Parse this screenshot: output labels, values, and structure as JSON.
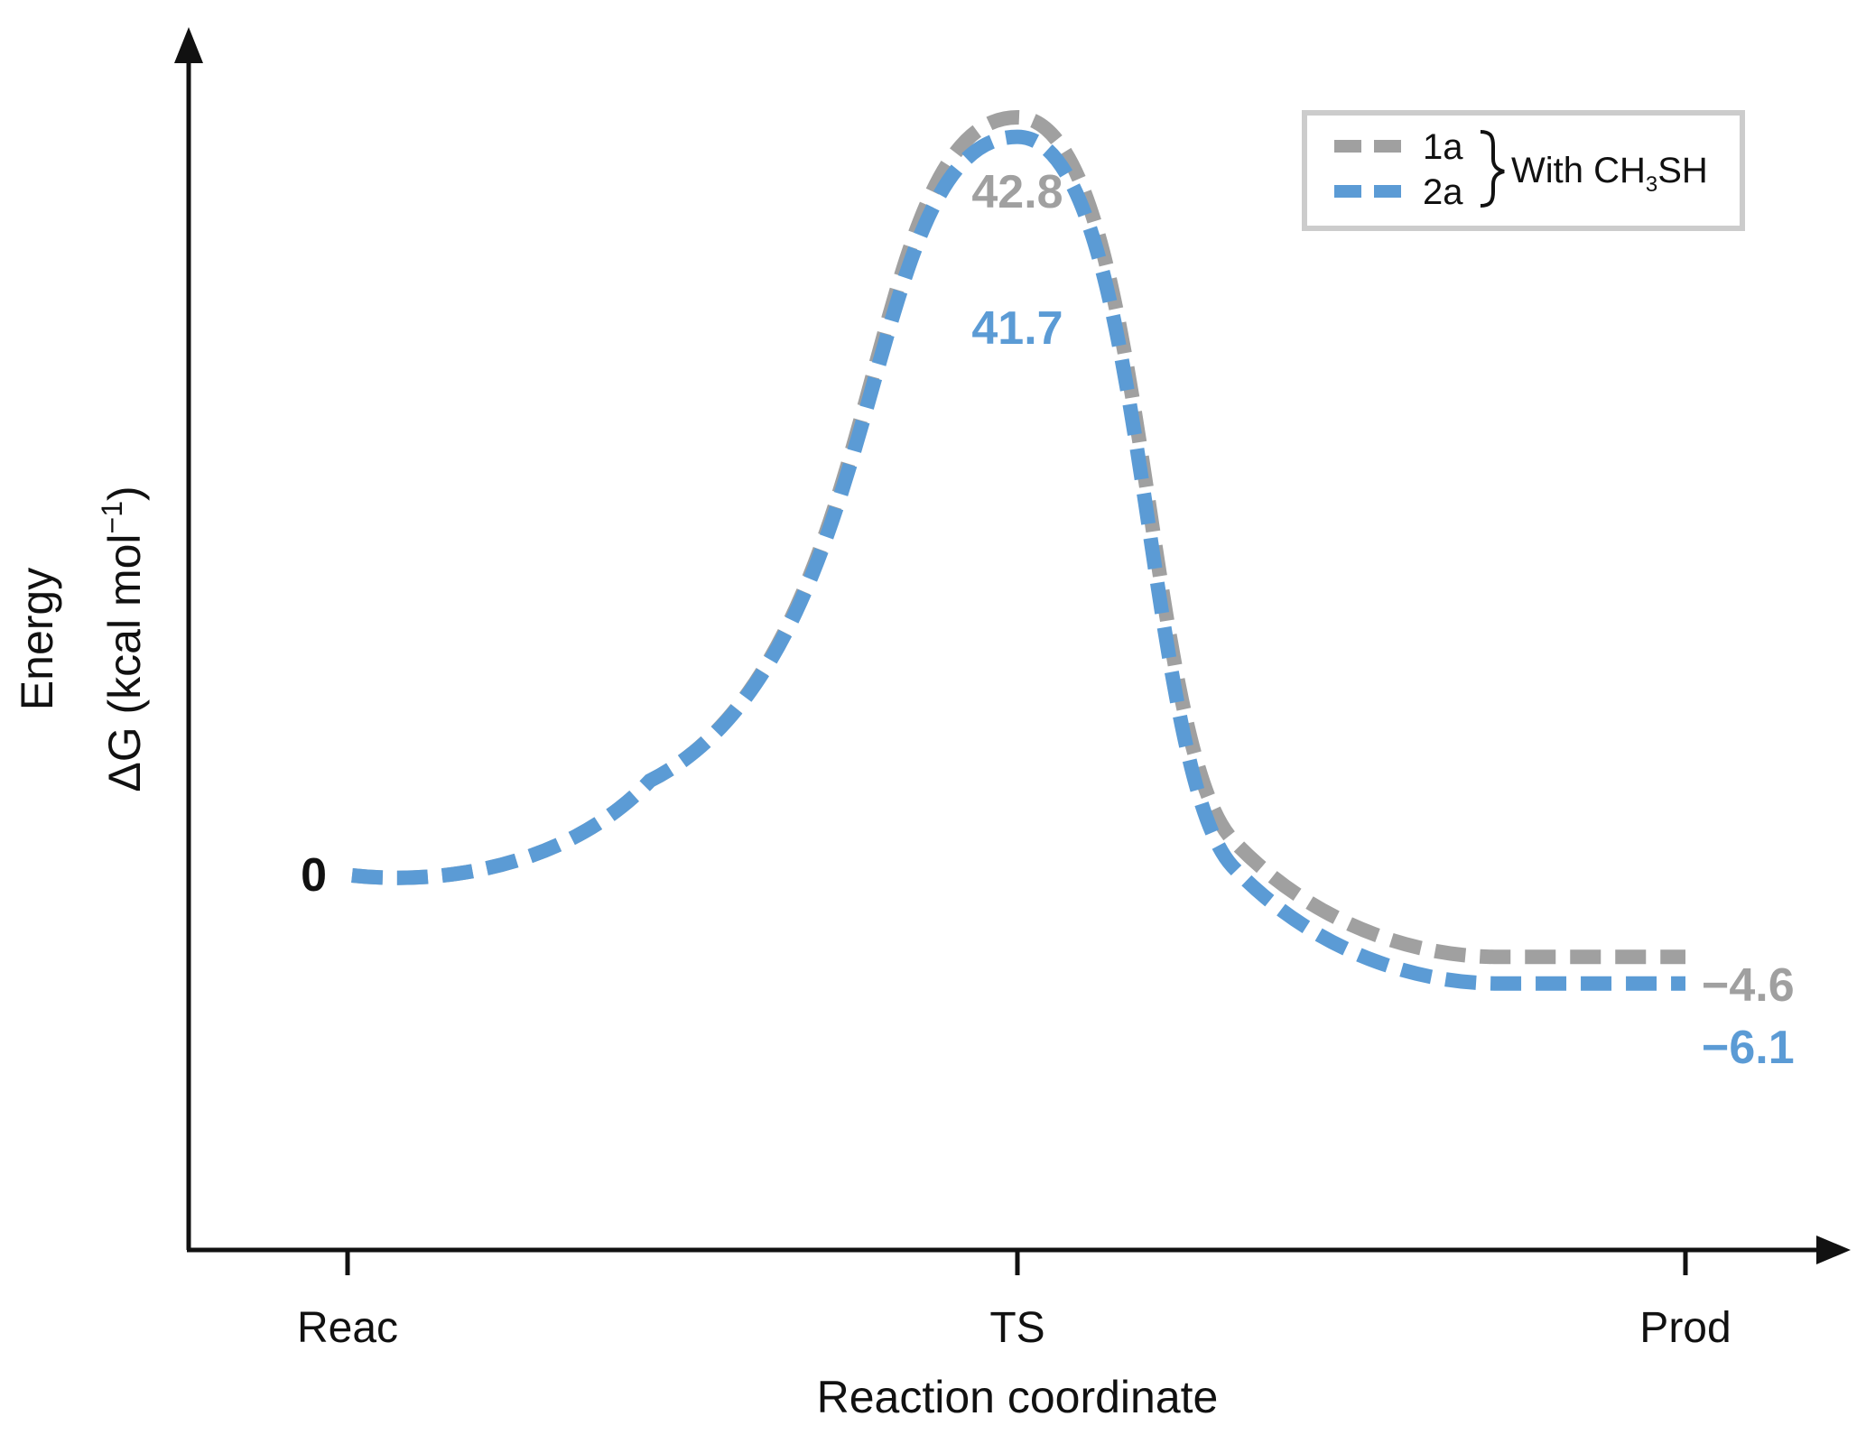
{
  "chart_data": {
    "type": "line",
    "title": "",
    "xlabel": "Reaction coordinate",
    "ylabel_lines": [
      "Energy",
      "ΔG (kcal mol",
      "−1",
      ")"
    ],
    "categories": [
      "Reac",
      "TS",
      "Prod"
    ],
    "ylim": [
      -25,
      55
    ],
    "series": [
      {
        "name": "1a",
        "color": "#a0a0a0",
        "values": [
          0,
          42.8,
          -4.6
        ],
        "labels": [
          "",
          "42.8",
          "−4.6"
        ]
      },
      {
        "name": "2a",
        "color": "#5b9bd5",
        "values": [
          0,
          41.7,
          -6.1
        ],
        "labels": [
          "",
          "41.7",
          "−6.1"
        ]
      }
    ],
    "start_label": "0",
    "legend": {
      "position": "top-right",
      "group_label_prefix": "With CH",
      "group_label_sub": "3",
      "group_label_suffix": "SH"
    }
  }
}
